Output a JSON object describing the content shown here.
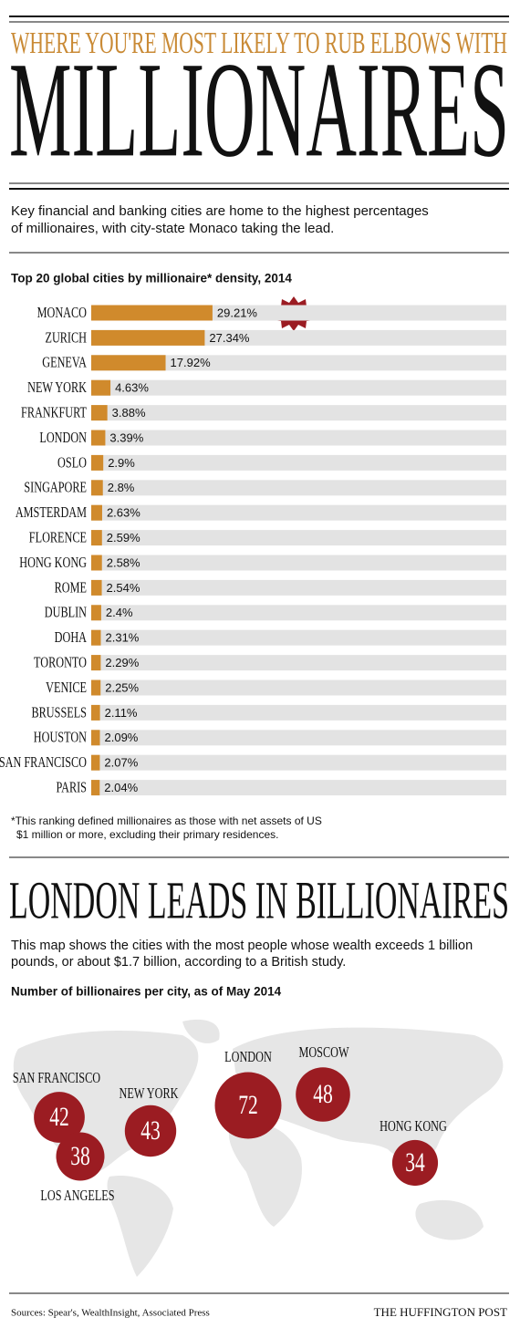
{
  "header": {
    "kicker": "WHERE YOU'RE MOST LIKELY TO RUB ELBOWS WITH",
    "title": "MILLIONAIRES",
    "description": [
      "Key financial and banking cities are home to the highest percentages",
      "of millionaires, with city-state Monaco taking the lead."
    ]
  },
  "section2": {
    "title": "LONDON LEADS IN BILLIONAIRES",
    "description": [
      "This map shows the cities with the most people whose wealth exceeds 1 billion",
      "pounds, or about $1.7 billion, according to a British study."
    ]
  },
  "footer": {
    "source": "Sources: Spear's, WealthInsight, Associated Press",
    "brand": "THE HUFFINGTON POST"
  },
  "chart_data": [
    {
      "type": "hbar",
      "title": "Top 20 global cities by millionaire* density, 2014",
      "categories": [
        "MONACO",
        "ZURICH",
        "GENEVA",
        "NEW YORK",
        "FRANKFURT",
        "LONDON",
        "OSLO",
        "SINGAPORE",
        "AMSTERDAM",
        "FLORENCE",
        "HONG KONG",
        "ROME",
        "DUBLIN",
        "DOHA",
        "TORONTO",
        "VENICE",
        "BRUSSELS",
        "HOUSTON",
        "SAN FRANCISCO",
        "PARIS"
      ],
      "values": [
        29.21,
        27.34,
        17.92,
        4.63,
        3.88,
        3.39,
        2.9,
        2.8,
        2.63,
        2.59,
        2.58,
        2.54,
        2.4,
        2.31,
        2.29,
        2.25,
        2.11,
        2.09,
        2.07,
        2.04
      ],
      "value_labels": [
        "29.21%",
        "27.34%",
        "17.92%",
        "4.63%",
        "3.88%",
        "3.39%",
        "2.9%",
        "2.8%",
        "2.63%",
        "2.59%",
        "2.58%",
        "2.54%",
        "2.4%",
        "2.31%",
        "2.29%",
        "2.25%",
        "2.11%",
        "2.09%",
        "2.07%",
        "2.04%"
      ],
      "color": "#d08a2c",
      "track_color": "#e3e3e3",
      "xlim": [
        0,
        100
      ],
      "annotation": "#1",
      "footnote": [
        "*This ranking defined millionaires as those with net assets of US",
        "$1 million or more, excluding their primary residences."
      ]
    },
    {
      "type": "bubble",
      "title": "Number of billionaires per city, as of May 2014",
      "categories": [
        "SAN FRANCISCO",
        "LOS ANGELES",
        "NEW YORK",
        "LONDON",
        "MOSCOW",
        "HONG KONG"
      ],
      "values": [
        42,
        38,
        43,
        72,
        48,
        34
      ],
      "color": "#9b1c22"
    }
  ]
}
